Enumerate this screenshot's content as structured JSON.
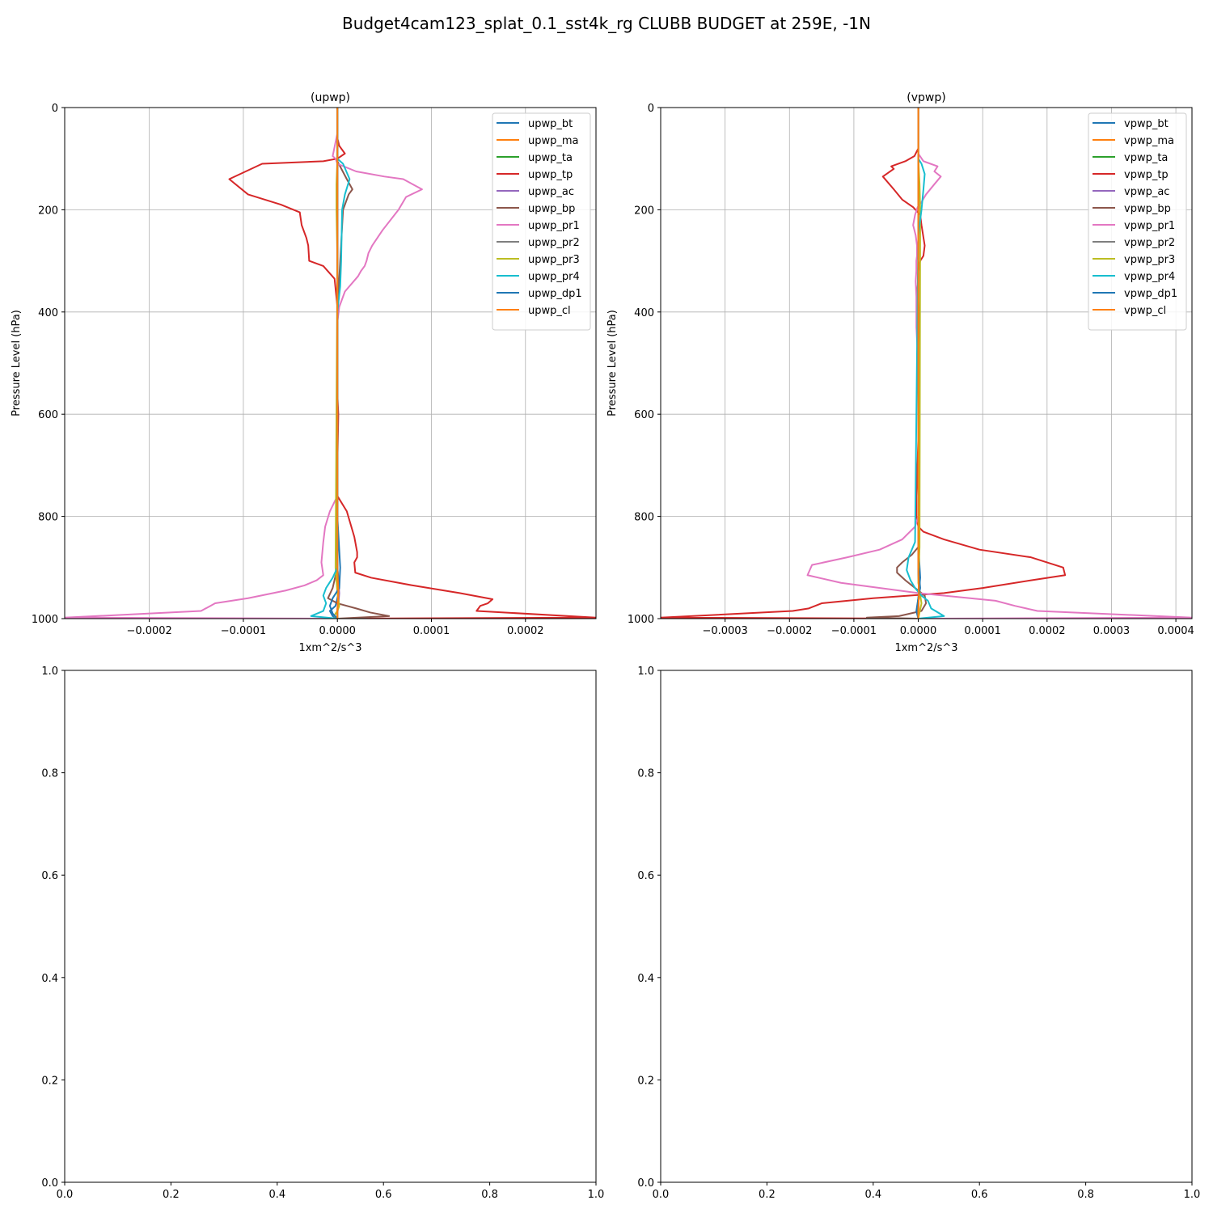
{
  "figure_title": "Budget4cam123_splat_0.1_sst4k_rg CLUBB BUDGET at 259E, -1N",
  "colors": [
    "#1f77b4",
    "#ff7f0e",
    "#2ca02c",
    "#d62728",
    "#9467bd",
    "#8c564b",
    "#e377c2",
    "#7f7f7f",
    "#bcbd22",
    "#17becf",
    "#1f77b4",
    "#ff7f0e"
  ],
  "chart_data": [
    {
      "type": "line",
      "title": "(upwp)",
      "xlabel": "1xm^2/s^3",
      "ylabel": "Pressure Level (hPa)",
      "xlim": [
        -0.00029,
        0.000275
      ],
      "ylim": [
        1000,
        0
      ],
      "grid": true,
      "legend_position": "top-right",
      "xticks": [
        -0.0002,
        -0.0001,
        0.0,
        0.0001,
        0.0002
      ],
      "xtick_labels": [
        "−0.0002",
        "−0.0001",
        "0.0000",
        "0.0001",
        "0.0002"
      ],
      "yticks": [
        0,
        200,
        400,
        600,
        800,
        1000
      ],
      "ytick_labels": [
        "0",
        "200",
        "400",
        "600",
        "800",
        "1000"
      ],
      "series": [
        {
          "name": "upwp_bt",
          "x": [
            0,
            0,
            3e-06,
            2e-06,
            0,
            -2e-06,
            -8e-06,
            -5e-06,
            0
          ],
          "y": [
            0,
            800,
            900,
            940,
            960,
            975,
            985,
            995,
            1000
          ]
        },
        {
          "name": "upwp_ma",
          "x": [
            0,
            0,
            1e-06,
            0,
            0
          ],
          "y": [
            0,
            900,
            950,
            985,
            1000
          ]
        },
        {
          "name": "upwp_ta",
          "x": [
            0,
            0,
            1e-06,
            0,
            0
          ],
          "y": [
            0,
            900,
            950,
            985,
            1000
          ]
        },
        {
          "name": "upwp_tp",
          "x": [
            0,
            0,
            2e-06,
            8e-06,
            0,
            -1.5e-05,
            -8e-05,
            -0.000115,
            -9.5e-05,
            -6e-05,
            -4e-05,
            -3.8e-05,
            -3.3e-05,
            -3.1e-05,
            -3e-05,
            -1.5e-05,
            -3e-06,
            0,
            0,
            0,
            0,
            0,
            1e-06,
            0,
            0,
            1e-05,
            1.8e-05,
            2.1e-05,
            2.1e-05,
            1.8e-05,
            1.9e-05,
            3.6e-05,
            8e-05,
            0.00013,
            0.000165,
            0.00016,
            0.000152,
            0.000148,
            0.000275,
            0
          ],
          "y": [
            0,
            60,
            75,
            90,
            100,
            105,
            110,
            140,
            170,
            190,
            205,
            230,
            255,
            270,
            300,
            310,
            335,
            390,
            420,
            460,
            500,
            560,
            600,
            700,
            760,
            790,
            840,
            870,
            880,
            890,
            910,
            920,
            935,
            950,
            962,
            970,
            975,
            985,
            998,
            1000
          ]
        },
        {
          "name": "upwp_ac",
          "x": [
            0,
            0,
            2e-06,
            1e-06,
            0,
            0
          ],
          "y": [
            0,
            900,
            950,
            975,
            990,
            1000
          ]
        },
        {
          "name": "upwp_bp",
          "x": [
            0,
            0,
            1e-05,
            1.6e-05,
            1.2e-05,
            6e-06,
            3e-06,
            0,
            0,
            0,
            -5e-06,
            -1e-05,
            0,
            2e-05,
            3.5e-05,
            5.5e-05,
            0
          ],
          "y": [
            0,
            105,
            140,
            160,
            170,
            200,
            300,
            400,
            700,
            900,
            940,
            960,
            970,
            980,
            988,
            995,
            1000
          ]
        },
        {
          "name": "upwp_pr1",
          "x": [
            0,
            0,
            -5e-06,
            -2e-06,
            0,
            2e-05,
            5e-05,
            7e-05,
            9e-05,
            7.3e-05,
            6.5e-05,
            4.8e-05,
            3.7e-05,
            3.3e-05,
            3.1e-05,
            2.9e-05,
            2.5e-05,
            2.2e-05,
            8e-06,
            2e-06,
            0,
            0,
            0,
            0,
            0,
            -8e-06,
            -1.3e-05,
            -1.5e-05,
            -1.6e-05,
            -1.7e-05,
            -1.5e-05,
            -2.2e-05,
            -3.5e-05,
            -5.5e-05,
            -9.5e-05,
            -0.00013,
            -0.000135,
            -0.000145,
            -0.00029,
            0
          ],
          "y": [
            0,
            50,
            95,
            100,
            110,
            125,
            135,
            140,
            160,
            175,
            200,
            240,
            270,
            285,
            300,
            310,
            320,
            330,
            360,
            390,
            420,
            500,
            600,
            700,
            760,
            790,
            820,
            850,
            870,
            890,
            915,
            925,
            935,
            945,
            960,
            970,
            975,
            985,
            998,
            1000
          ]
        },
        {
          "name": "upwp_pr2",
          "x": [
            0,
            0,
            1e-06,
            0,
            0
          ],
          "y": [
            0,
            900,
            950,
            985,
            1000
          ]
        },
        {
          "name": "upwp_pr3",
          "x": [
            0,
            0,
            -1e-06,
            -1e-06,
            0,
            -2e-06,
            0,
            2e-06,
            0,
            -2e-06,
            -3e-06,
            0
          ],
          "y": [
            0,
            100,
            150,
            200,
            300,
            900,
            950,
            975,
            985,
            990,
            995,
            1000
          ]
        },
        {
          "name": "upwp_pr4",
          "x": [
            0,
            0,
            6e-06,
            1.3e-05,
            8e-06,
            5e-06,
            4e-06,
            3e-06,
            0,
            0,
            0,
            -5e-06,
            -1.2e-05,
            -1.5e-05,
            -1.2e-05,
            -1.5e-05,
            -2.8e-05,
            0
          ],
          "y": [
            0,
            100,
            110,
            140,
            170,
            200,
            300,
            350,
            400,
            700,
            900,
            920,
            940,
            955,
            970,
            985,
            995,
            1000
          ]
        },
        {
          "name": "upwp_dp1",
          "x": [
            0,
            0,
            2e-06,
            -5e-06,
            -8e-06,
            -5e-06,
            0
          ],
          "y": [
            0,
            900,
            940,
            960,
            975,
            990,
            1000
          ]
        },
        {
          "name": "upwp_cl",
          "x": [
            0,
            0,
            1e-06,
            0,
            0
          ],
          "y": [
            0,
            900,
            950,
            985,
            1000
          ]
        }
      ]
    },
    {
      "type": "line",
      "title": "(vpwp)",
      "xlabel": "1xm^2/s^3",
      "ylabel": "Pressure Level (hPa)",
      "xlim": [
        -0.0004,
        0.000425
      ],
      "ylim": [
        1000,
        0
      ],
      "grid": true,
      "legend_position": "top-right",
      "xticks": [
        -0.0003,
        -0.0002,
        -0.0001,
        0.0,
        0.0001,
        0.0002,
        0.0003,
        0.0004
      ],
      "xtick_labels": [
        "−0.0003",
        "−0.0002",
        "−0.0001",
        "0.0000",
        "0.0001",
        "0.0002",
        "0.0003",
        "0.0004"
      ],
      "yticks": [
        0,
        200,
        400,
        600,
        800,
        1000
      ],
      "ytick_labels": [
        "0",
        "200",
        "400",
        "600",
        "800",
        "1000"
      ],
      "series": [
        {
          "name": "vpwp_bt",
          "x": [
            0,
            0,
            3e-06,
            0,
            -2e-06,
            0
          ],
          "y": [
            0,
            850,
            920,
            960,
            985,
            1000
          ]
        },
        {
          "name": "vpwp_ma",
          "x": [
            0,
            0,
            1e-06,
            0,
            0
          ],
          "y": [
            0,
            900,
            950,
            985,
            1000
          ]
        },
        {
          "name": "vpwp_ta",
          "x": [
            0,
            0,
            1e-06,
            0,
            0
          ],
          "y": [
            0,
            900,
            950,
            985,
            1000
          ]
        },
        {
          "name": "vpwp_tp",
          "x": [
            0,
            0,
            -6e-06,
            -2e-05,
            -4.2e-05,
            -3.8e-05,
            -5.5e-05,
            -3.8e-05,
            -2.5e-05,
            -8e-06,
            3e-06,
            5e-06,
            1e-05,
            8e-06,
            3e-06,
            0,
            0,
            -2e-06,
            0,
            2e-06,
            0,
            0,
            0,
            -3e-06,
            -3e-06,
            0,
            8e-06,
            4e-05,
            9.5e-05,
            0.000175,
            0.000225,
            0.000228,
            0.000175,
            0.0001,
            4e-05,
            -7e-05,
            -0.00015,
            -0.00017,
            -0.000195,
            -0.0004,
            0
          ],
          "y": [
            0,
            80,
            95,
            105,
            115,
            120,
            135,
            160,
            180,
            195,
            210,
            230,
            270,
            290,
            300,
            320,
            340,
            360,
            380,
            420,
            460,
            500,
            650,
            760,
            800,
            820,
            830,
            845,
            865,
            880,
            900,
            915,
            925,
            940,
            950,
            960,
            970,
            980,
            985,
            998,
            1000
          ]
        },
        {
          "name": "vpwp_ac",
          "x": [
            0,
            0,
            1e-06,
            0,
            0
          ],
          "y": [
            0,
            900,
            950,
            985,
            1000
          ]
        },
        {
          "name": "vpwp_bp",
          "x": [
            0,
            0,
            -1e-05,
            -2.5e-05,
            -3.3e-05,
            -3.3e-05,
            -2e-05,
            -5e-06,
            1e-05,
            1.2e-05,
            5e-06,
            -3e-05,
            -8e-05,
            0
          ],
          "y": [
            0,
            860,
            875,
            890,
            900,
            910,
            925,
            940,
            955,
            970,
            985,
            995,
            998,
            1000
          ]
        },
        {
          "name": "vpwp_pr1",
          "x": [
            0,
            0,
            8e-06,
            3e-05,
            2.5e-05,
            3.5e-05,
            2.5e-05,
            1.2e-05,
            5e-06,
            -1e-06,
            -5e-06,
            -8e-06,
            -4e-06,
            -2e-06,
            -2e-06,
            -3e-06,
            -3e-06,
            -4e-06,
            -3e-06,
            -3e-06,
            0,
            0,
            -5e-06,
            -2.5e-05,
            -6e-05,
            -0.00011,
            -0.000165,
            -0.000172,
            -0.00012,
            0,
            0.00012,
            0.00015,
            0.000185,
            0.000425,
            0
          ],
          "y": [
            0,
            90,
            105,
            115,
            125,
            135,
            150,
            170,
            185,
            195,
            210,
            230,
            250,
            270,
            290,
            300,
            320,
            340,
            370,
            430,
            500,
            800,
            820,
            845,
            865,
            880,
            895,
            915,
            930,
            950,
            965,
            975,
            985,
            998,
            1000
          ]
        },
        {
          "name": "vpwp_pr2",
          "x": [
            0,
            0,
            1e-06,
            0,
            0
          ],
          "y": [
            0,
            900,
            950,
            985,
            1000
          ]
        },
        {
          "name": "vpwp_pr3",
          "x": [
            0,
            0,
            2e-06,
            3e-06,
            2e-06,
            0,
            5e-06,
            0
          ],
          "y": [
            0,
            100,
            150,
            200,
            860,
            930,
            970,
            1000
          ]
        },
        {
          "name": "vpwp_pr4",
          "x": [
            0,
            0,
            5e-06,
            1e-05,
            8e-06,
            5e-06,
            0,
            -5e-06,
            -1.5e-05,
            -1.8e-05,
            -1.2e-05,
            -5e-06,
            5e-06,
            1.5e-05,
            2e-05,
            4e-05,
            0
          ],
          "y": [
            0,
            100,
            110,
            130,
            160,
            200,
            250,
            850,
            880,
            905,
            925,
            940,
            955,
            965,
            980,
            995,
            1000
          ]
        },
        {
          "name": "vpwp_dp1",
          "x": [
            0,
            0,
            3e-06,
            0,
            -3e-06,
            0
          ],
          "y": [
            0,
            900,
            940,
            960,
            985,
            1000
          ]
        },
        {
          "name": "vpwp_cl",
          "x": [
            0,
            0,
            1e-06,
            0,
            0
          ],
          "y": [
            0,
            900,
            950,
            985,
            1000
          ]
        }
      ]
    },
    {
      "type": "line",
      "title": "",
      "xlim": [
        0,
        1
      ],
      "ylim": [
        0,
        1
      ],
      "grid": false,
      "xticks": [
        0,
        0.2,
        0.4,
        0.6,
        0.8,
        1.0
      ],
      "xtick_labels": [
        "0.0",
        "0.2",
        "0.4",
        "0.6",
        "0.8",
        "1.0"
      ],
      "yticks": [
        0,
        0.2,
        0.4,
        0.6,
        0.8,
        1.0
      ],
      "ytick_labels": [
        "0.0",
        "0.2",
        "0.4",
        "0.6",
        "0.8",
        "1.0"
      ],
      "series": []
    },
    {
      "type": "line",
      "title": "",
      "xlim": [
        0,
        1
      ],
      "ylim": [
        0,
        1
      ],
      "grid": false,
      "xticks": [
        0,
        0.2,
        0.4,
        0.6,
        0.8,
        1.0
      ],
      "xtick_labels": [
        "0.0",
        "0.2",
        "0.4",
        "0.6",
        "0.8",
        "1.0"
      ],
      "yticks": [
        0,
        0.2,
        0.4,
        0.6,
        0.8,
        1.0
      ],
      "ytick_labels": [
        "0.0",
        "0.2",
        "0.4",
        "0.6",
        "0.8",
        "1.0"
      ],
      "series": []
    }
  ]
}
